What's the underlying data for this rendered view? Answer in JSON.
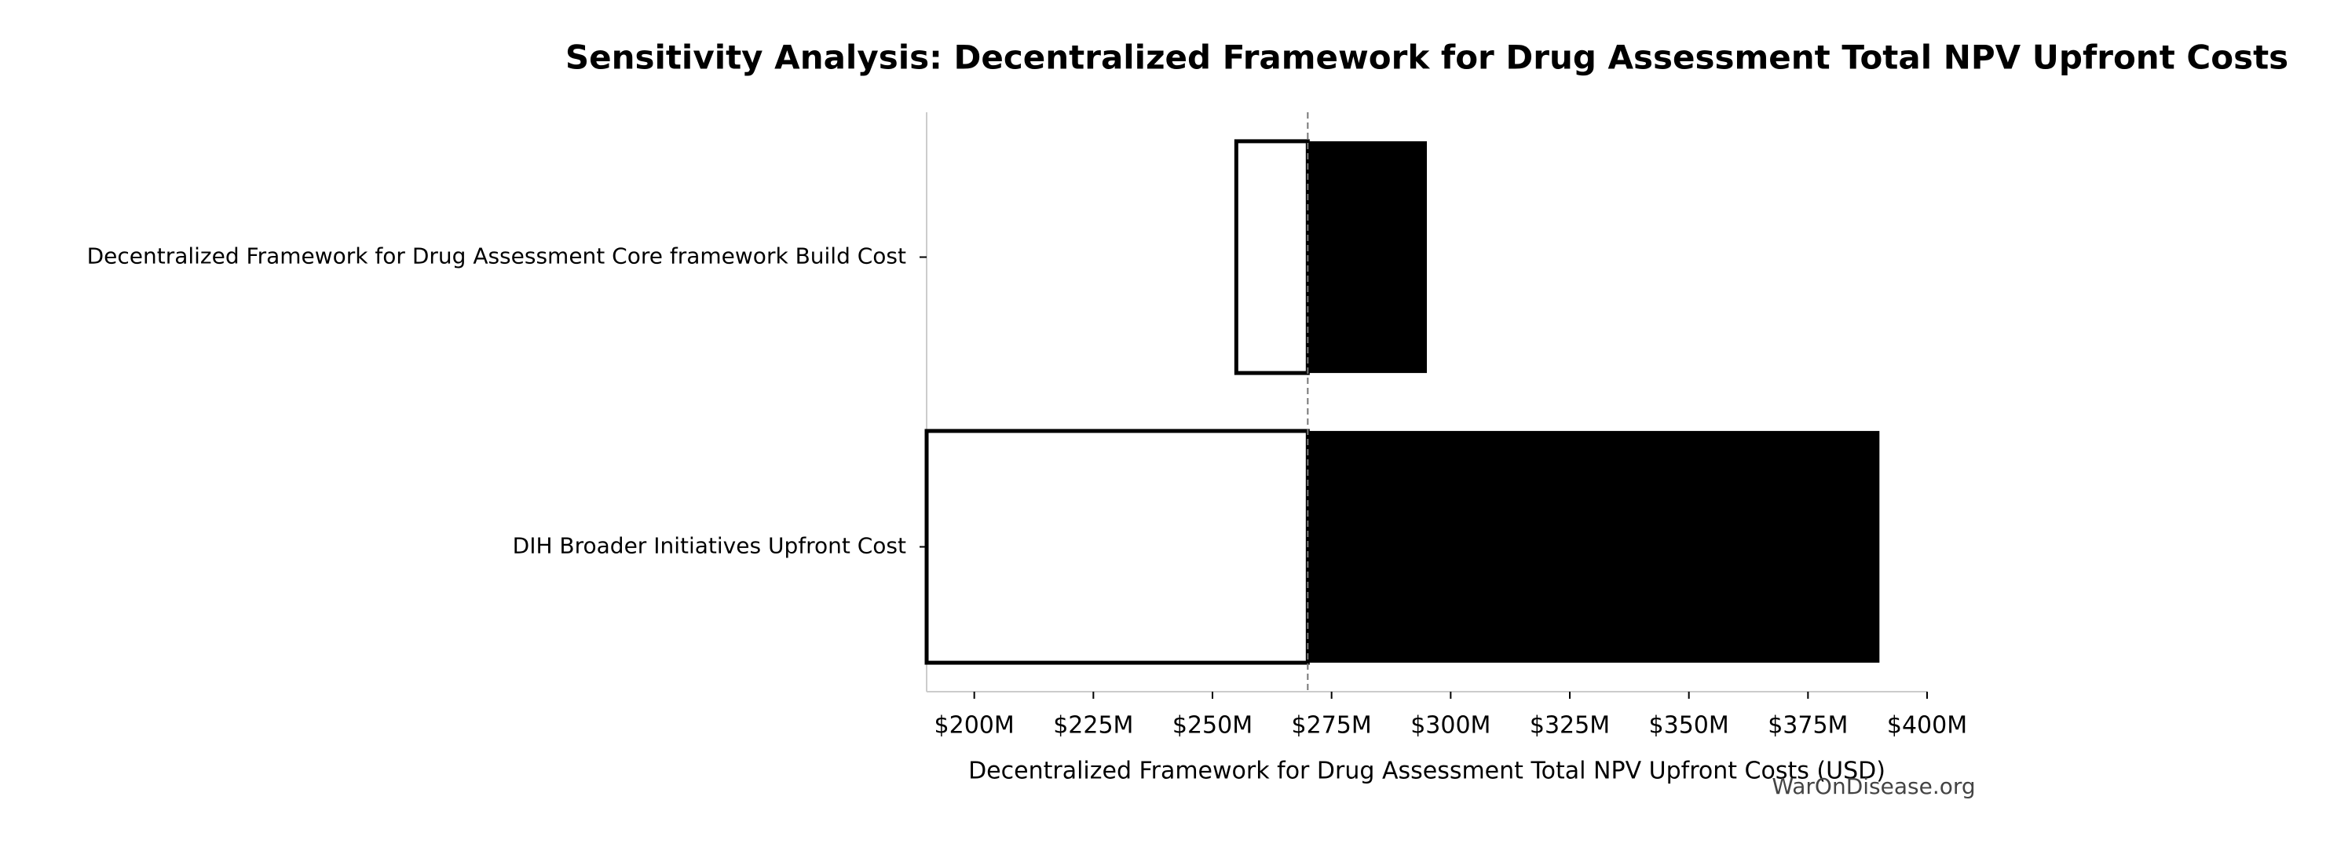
{
  "chart_data": {
    "type": "tornado",
    "title": "Sensitivity Analysis: Decentralized Framework for Drug Assessment Total NPV Upfront Costs",
    "xlabel": "Decentralized Framework for Drug Assessment Total NPV Upfront Costs (USD)",
    "categories": [
      "Decentralized Framework for Drug Assessment Core framework Build Cost",
      "DIH Broader Initiatives Upfront Cost"
    ],
    "baseline": 270,
    "series": [
      {
        "color": "#ffffff",
        "edgecolor": "#000000",
        "values": [
          255,
          190
        ]
      },
      {
        "color": "#000000",
        "values": [
          295,
          390
        ]
      }
    ],
    "xlim": [
      190,
      400
    ],
    "xticks": [
      {
        "value": 200,
        "label": "$200M"
      },
      {
        "value": 225,
        "label": "$225M"
      },
      {
        "value": 250,
        "label": "$250M"
      },
      {
        "value": 275,
        "label": "$275M"
      },
      {
        "value": 300,
        "label": "$300M"
      },
      {
        "value": 325,
        "label": "$325M"
      },
      {
        "value": 350,
        "label": "$350M"
      },
      {
        "value": 375,
        "label": "$375M"
      },
      {
        "value": 400,
        "label": "$400M"
      }
    ],
    "watermark": "WarOnDisease.org"
  }
}
